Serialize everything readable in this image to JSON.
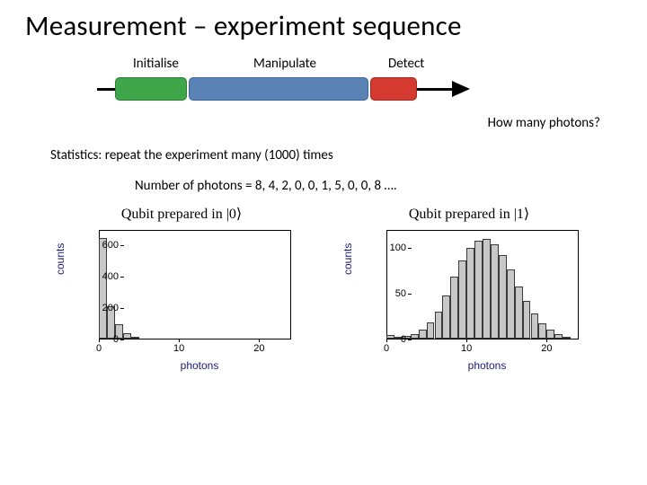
{
  "title": "Measurement – experiment sequence",
  "sequence": {
    "labels": {
      "initialise": "Initialise",
      "manipulate": "Manipulate",
      "detect": "Detect"
    },
    "bar_init": {
      "fill": "#3fa64a",
      "stroke": "#2e7d36"
    },
    "bar_manip": {
      "fill": "#5a82b5",
      "stroke": "#3e6596"
    },
    "bar_detect": {
      "fill": "#d43a2f",
      "stroke": "#a32820"
    }
  },
  "text": {
    "how_many": "How many photons?",
    "stats": "Statistics: repeat the experiment many (1000) times",
    "nphotons": "Number of photons = 8, 4, 2, 0, 0, 1, 5, 0, 0, 8 …."
  },
  "axis_label_color": "#1a1a7a",
  "bar_fill": "#c8c8c8",
  "bar_stroke": "#3a3a3a",
  "chart0": {
    "title_pre": "Qubit prepared in ",
    "title_ket": "|0⟩",
    "ylabel": "counts",
    "xlabel": "photons",
    "ymax": 700,
    "yticks": [
      0,
      200,
      400,
      600
    ],
    "xmax": 24,
    "xticks": [
      0,
      10,
      20
    ],
    "bar_width_units": 1.0,
    "bars": [
      {
        "x": 0,
        "y": 650
      },
      {
        "x": 1,
        "y": 210
      },
      {
        "x": 2,
        "y": 90
      },
      {
        "x": 3,
        "y": 35
      },
      {
        "x": 4,
        "y": 12
      }
    ]
  },
  "chart1": {
    "title_pre": "Qubit prepared in ",
    "title_ket": "|1⟩",
    "ylabel": "counts",
    "xlabel": "photons",
    "ymax": 120,
    "yticks": [
      0,
      50,
      100
    ],
    "xmax": 24,
    "xticks": [
      0,
      10,
      20
    ],
    "bar_width_units": 1.0,
    "bars": [
      {
        "x": 0,
        "y": 4
      },
      {
        "x": 1,
        "y": 2
      },
      {
        "x": 2,
        "y": 3
      },
      {
        "x": 3,
        "y": 5
      },
      {
        "x": 4,
        "y": 10
      },
      {
        "x": 5,
        "y": 18
      },
      {
        "x": 6,
        "y": 30
      },
      {
        "x": 7,
        "y": 48
      },
      {
        "x": 8,
        "y": 68
      },
      {
        "x": 9,
        "y": 86
      },
      {
        "x": 10,
        "y": 100
      },
      {
        "x": 11,
        "y": 108
      },
      {
        "x": 12,
        "y": 110
      },
      {
        "x": 13,
        "y": 104
      },
      {
        "x": 14,
        "y": 92
      },
      {
        "x": 15,
        "y": 76
      },
      {
        "x": 16,
        "y": 58
      },
      {
        "x": 17,
        "y": 42
      },
      {
        "x": 18,
        "y": 28
      },
      {
        "x": 19,
        "y": 17
      },
      {
        "x": 20,
        "y": 10
      },
      {
        "x": 21,
        "y": 5
      },
      {
        "x": 22,
        "y": 2
      }
    ]
  }
}
